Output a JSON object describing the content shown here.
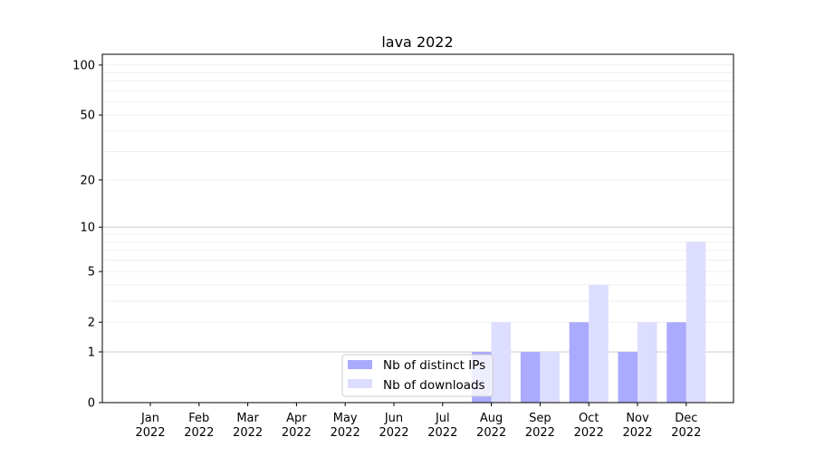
{
  "chart_data": {
    "type": "bar",
    "title": "lava 2022",
    "categories": [
      "Jan\n2022",
      "Feb\n2022",
      "Mar\n2022",
      "Apr\n2022",
      "May\n2022",
      "Jun\n2022",
      "Jul\n2022",
      "Aug\n2022",
      "Sep\n2022",
      "Oct\n2022",
      "Nov\n2022",
      "Dec\n2022"
    ],
    "series": [
      {
        "name": "Nb of distinct IPs",
        "color": "#aaaaff",
        "values": [
          0,
          0,
          0,
          0,
          0,
          0,
          0,
          1,
          1,
          2,
          1,
          2
        ]
      },
      {
        "name": "Nb of downloads",
        "color": "#ddddff",
        "values": [
          0,
          0,
          0,
          0,
          0,
          0,
          0,
          2,
          1,
          4,
          2,
          8
        ]
      }
    ],
    "y_scale": "log(1+y)",
    "yticks": [
      0,
      1,
      2,
      5,
      10,
      20,
      50,
      100
    ],
    "ylim": [
      0,
      116
    ],
    "grid": true,
    "legend_position": "lower-center",
    "xlabel": "",
    "ylabel": ""
  }
}
